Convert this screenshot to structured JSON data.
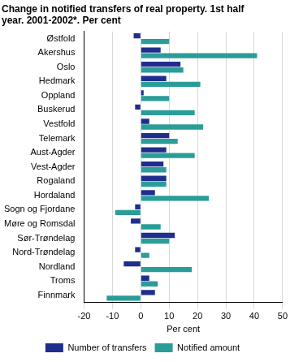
{
  "chart_data": {
    "type": "bar",
    "orientation": "horizontal",
    "title": [
      "Change in notified transfers of real property. 1st half",
      "year. 2001-2002*. Per cent"
    ],
    "x_label": "Per cent",
    "categories": [
      "Østfold",
      "Akershus",
      "Oslo",
      "Hedmark",
      "Oppland",
      "Buskerud",
      "Vestfold",
      "Telemark",
      "Aust-Agder",
      "Vest-Agder",
      "Rogaland",
      "Hordaland",
      "Sogn og Fjordane",
      "Møre og Romsdal",
      "Sør-Trøndelag",
      "Nord-Trøndelag",
      "Nordland",
      "Troms",
      "Finnmark"
    ],
    "series": [
      {
        "name": "Number of transfers",
        "color": "#1f2e8c",
        "values": [
          -2.5,
          7,
          14,
          9,
          1,
          -2,
          3,
          10,
          9,
          8,
          9,
          5,
          -2,
          -3.5,
          12,
          -2,
          -6,
          3,
          5
        ]
      },
      {
        "name": "Notified amount",
        "color": "#2a9d98",
        "values": [
          10,
          41,
          15,
          21,
          10,
          19,
          22,
          13,
          19,
          9,
          9,
          24,
          -9,
          7,
          10,
          3,
          18,
          6,
          -12
        ]
      }
    ],
    "xlim": [
      -20,
      50
    ],
    "xticks": [
      -20,
      -10,
      0,
      10,
      20,
      30,
      40,
      50
    ],
    "grid": true,
    "legend": "bottom"
  }
}
